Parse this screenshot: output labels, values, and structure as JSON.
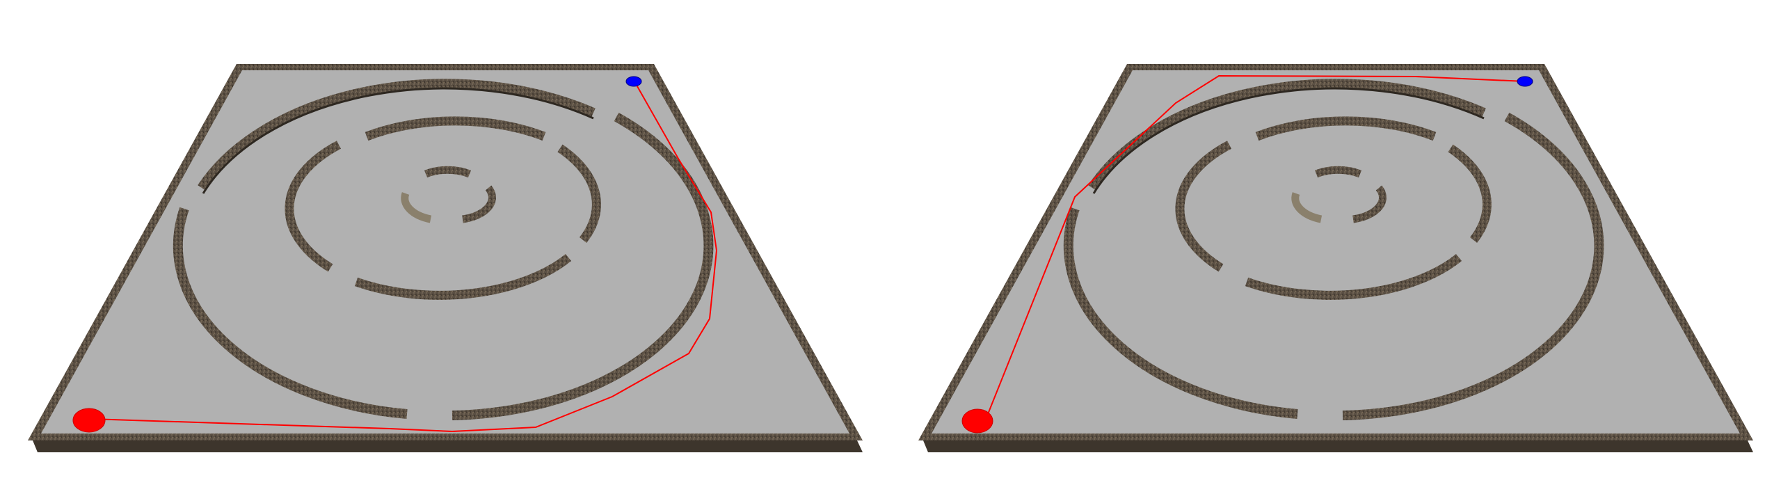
{
  "panels": [
    {
      "id": "left",
      "start_marker": "red-start-dot",
      "goal_marker": "blue-goal-dot",
      "path_color": "#ff0000"
    },
    {
      "id": "right",
      "start_marker": "red-start-dot",
      "goal_marker": "blue-goal-dot",
      "path_color": "#ff0000"
    }
  ],
  "colors": {
    "floor": "#b1b1b1",
    "wall": "#5a4f43",
    "wall_edge": "#2e2821",
    "start": "#ff0000",
    "goal": "#0000ff",
    "background": "#ffffff"
  }
}
